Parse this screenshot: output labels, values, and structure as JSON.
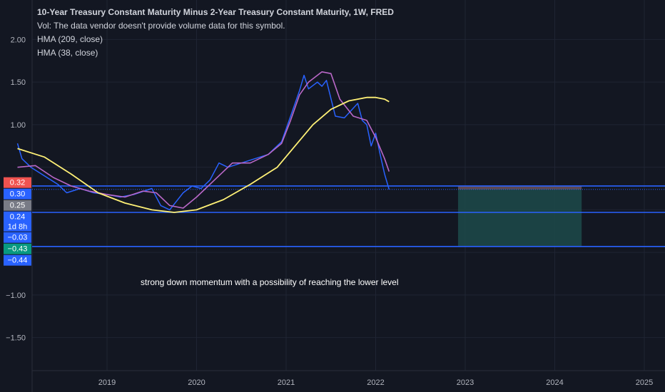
{
  "legend": {
    "title": "10-Year Treasury Constant Maturity Minus 2-Year Treasury Constant Maturity, 1W, FRED",
    "vol": "Vol: The data vendor doesn't provide volume data for this symbol.",
    "hma_long": "HMA (209, close)",
    "hma_short": "HMA (38, close)"
  },
  "annotation": "strong down momentum with a possibility of reaching the lower level",
  "colors": {
    "background": "#131722",
    "price": "#2962ff",
    "hma_long": "#fff176",
    "hma_short": "#ba68c8",
    "hline": "#2962ff",
    "box_fill": "#1d4a4a",
    "box_top": "#8a4d5a"
  },
  "chart_data": {
    "type": "line",
    "xlim": [
      2018.0,
      2025.2
    ],
    "ylim": [
      -2.0,
      2.3
    ],
    "yticks": [
      2.0,
      1.5,
      1.0,
      -1.0,
      -1.5
    ],
    "ytick_labels": [
      "2.00",
      "1.50",
      "1.00",
      "−1.00",
      "−1.50"
    ],
    "xticks": [
      2019,
      2020,
      2021,
      2022,
      2023,
      2024,
      2025
    ],
    "xtick_labels": [
      "2019",
      "2020",
      "2021",
      "2022",
      "2023",
      "2024",
      "2025"
    ],
    "series": [
      {
        "name": "10-Year Treasury Constant Maturity Minus 2-Year Treasury Constant Maturity",
        "x": [
          2018.0,
          2018.05,
          2018.15,
          2018.3,
          2018.45,
          2018.55,
          2018.7,
          2018.85,
          2019.0,
          2019.15,
          2019.3,
          2019.5,
          2019.6,
          2019.7,
          2019.85,
          2019.95,
          2020.05,
          2020.15,
          2020.25,
          2020.35,
          2020.5,
          2020.65,
          2020.8,
          2020.95,
          2021.05,
          2021.15,
          2021.2,
          2021.25,
          2021.35,
          2021.4,
          2021.45,
          2021.55,
          2021.65,
          2021.8,
          2021.85,
          2021.9,
          2021.95,
          2022.0,
          2022.05,
          2022.1,
          2022.15
        ],
        "values": [
          0.78,
          0.6,
          0.5,
          0.4,
          0.3,
          0.2,
          0.25,
          0.2,
          0.18,
          0.15,
          0.18,
          0.25,
          0.05,
          0.0,
          0.2,
          0.28,
          0.25,
          0.35,
          0.55,
          0.5,
          0.55,
          0.6,
          0.65,
          0.8,
          1.1,
          1.4,
          1.58,
          1.42,
          1.5,
          1.45,
          1.52,
          1.1,
          1.08,
          1.25,
          1.05,
          1.0,
          0.75,
          0.9,
          0.65,
          0.42,
          0.24
        ]
      },
      {
        "name": "HMA (38, close)",
        "x": [
          2018.0,
          2018.2,
          2018.4,
          2018.6,
          2018.8,
          2019.0,
          2019.2,
          2019.4,
          2019.55,
          2019.7,
          2019.85,
          2020.0,
          2020.2,
          2020.4,
          2020.6,
          2020.8,
          2020.95,
          2021.05,
          2021.15,
          2021.25,
          2021.4,
          2021.5,
          2021.6,
          2021.75,
          2021.9,
          2022.0,
          2022.1,
          2022.15
        ],
        "values": [
          0.5,
          0.52,
          0.38,
          0.28,
          0.22,
          0.18,
          0.15,
          0.22,
          0.2,
          0.05,
          0.02,
          0.15,
          0.35,
          0.55,
          0.55,
          0.65,
          0.78,
          1.05,
          1.35,
          1.5,
          1.62,
          1.6,
          1.3,
          1.1,
          1.05,
          0.85,
          0.6,
          0.45
        ]
      },
      {
        "name": "HMA (209, close)",
        "x": [
          2018.0,
          2018.3,
          2018.6,
          2018.9,
          2019.2,
          2019.5,
          2019.75,
          2020.0,
          2020.3,
          2020.6,
          2020.9,
          2021.1,
          2021.3,
          2021.5,
          2021.7,
          2021.9,
          2022.0,
          2022.1,
          2022.15
        ],
        "values": [
          0.72,
          0.62,
          0.42,
          0.2,
          0.08,
          0.0,
          -0.03,
          0.0,
          0.12,
          0.3,
          0.5,
          0.75,
          1.0,
          1.18,
          1.28,
          1.32,
          1.32,
          1.3,
          1.27
        ]
      }
    ],
    "hlines": [
      0.28,
      -0.03,
      -0.43
    ],
    "dotted_line": 0.24,
    "price_badges": [
      {
        "label": "0.32",
        "value": 0.32,
        "color": "#ef5350"
      },
      {
        "label": "0.30",
        "value": 0.3,
        "color": "#2962ff"
      },
      {
        "label": "0.25",
        "value": 0.25,
        "color": "#787b86"
      },
      {
        "label": "0.24",
        "sub": "1d 8h",
        "value": 0.24,
        "color": "#2962ff"
      },
      {
        "label": "−0.03",
        "value": -0.03,
        "color": "#2962ff"
      },
      {
        "label": "−0.43",
        "value": -0.43,
        "color": "#089981"
      },
      {
        "label": "−0.44",
        "value": -0.44,
        "color": "#2962ff"
      }
    ],
    "projection_box": {
      "x_start": 2022.92,
      "x_end": 2024.3,
      "y_top": 0.28,
      "y_bottom": -0.43
    }
  }
}
